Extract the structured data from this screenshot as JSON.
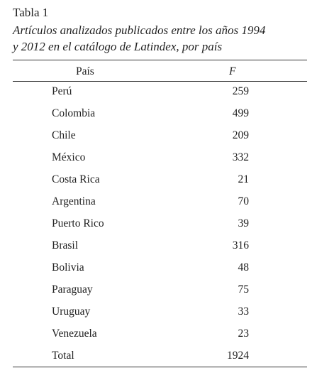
{
  "caption": {
    "label": "Tabla 1",
    "title_line1": "Artículos analizados publicados entre los años 1994",
    "title_line2": "y 2012 en el catálogo de Latindex, por país"
  },
  "table": {
    "header": [
      "País",
      "F"
    ],
    "rows": [
      [
        "Perú",
        "259"
      ],
      [
        "Colombia",
        "499"
      ],
      [
        "Chile",
        "209"
      ],
      [
        "México",
        "332"
      ],
      [
        "Costa Rica",
        "21"
      ],
      [
        "Argentina",
        "70"
      ],
      [
        "Puerto Rico",
        "39"
      ],
      [
        "Brasil",
        "316"
      ],
      [
        "Bolivia",
        "48"
      ],
      [
        "Paraguay",
        "75"
      ],
      [
        "Uruguay",
        "33"
      ],
      [
        "Venezuela",
        "23"
      ],
      [
        "Total",
        "1924"
      ]
    ]
  }
}
